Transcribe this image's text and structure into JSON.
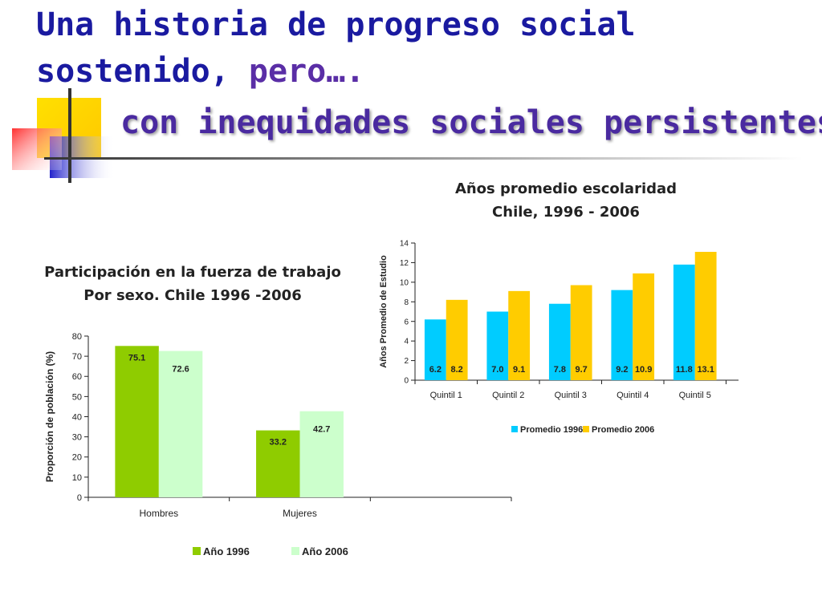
{
  "slide": {
    "title_line1": "Una historia de progreso social",
    "title_line2_a": "sostenido,",
    "title_line2_b": "pero….",
    "title_line3": "con inequidades sociales  persistentes"
  },
  "colors": {
    "title": "#1a1aa0",
    "green_dark": "#8fcc00",
    "green_light": "#ccffcc",
    "cyan": "#00ccff",
    "yellow": "#ffcc00"
  },
  "chart_data": [
    {
      "type": "bar",
      "title": "Participación en la fuerza de trabajo\nPor sexo. Chile 1996 -2006",
      "title_lines": [
        "Participación en la fuerza de trabajo",
        "Por sexo. Chile 1996 -2006"
      ],
      "ylabel": "Proporción de población (%)",
      "categories": [
        "Hombres",
        "Mujeres"
      ],
      "series": [
        {
          "name": "Año 1996",
          "values": [
            75.1,
            33.2
          ],
          "labels": [
            "75.1",
            "33.2"
          ],
          "color": "#8fcc00"
        },
        {
          "name": "Año 2006",
          "values": [
            72.6,
            42.7
          ],
          "labels": [
            "72.6",
            "42.7"
          ],
          "color": "#ccffcc"
        }
      ],
      "ylim": [
        0,
        80
      ],
      "yticks": [
        "0",
        "10",
        "20",
        "30",
        "40",
        "50",
        "60",
        "70",
        "80"
      ],
      "grid": false,
      "legend_position": "bottom"
    },
    {
      "type": "bar",
      "title": "Años promedio escolaridad\nChile, 1996 - 2006",
      "title_lines": [
        "Años promedio escolaridad",
        "Chile, 1996 - 2006"
      ],
      "ylabel": "Años Promedio de Estudio",
      "categories": [
        "Quintil 1",
        "Quintil 2",
        "Quintil 3",
        "Quintil 4",
        "Quintil 5"
      ],
      "series": [
        {
          "name": "Promedio 1996",
          "values": [
            6.2,
            7.0,
            7.8,
            9.2,
            11.8
          ],
          "labels": [
            "6.2",
            "7.0",
            "7.8",
            "9.2",
            "11.8"
          ],
          "color": "#00ccff"
        },
        {
          "name": "Promedio 2006",
          "values": [
            8.2,
            9.1,
            9.7,
            10.9,
            13.1
          ],
          "labels": [
            "8.2",
            "9.1",
            "9.7",
            "10.9",
            "13.1"
          ],
          "color": "#ffcc00"
        }
      ],
      "ylim": [
        0,
        14
      ],
      "yticks": [
        "0",
        "2",
        "4",
        "6",
        "8",
        "10",
        "12",
        "14"
      ],
      "grid": false,
      "legend_position": "bottom"
    }
  ]
}
